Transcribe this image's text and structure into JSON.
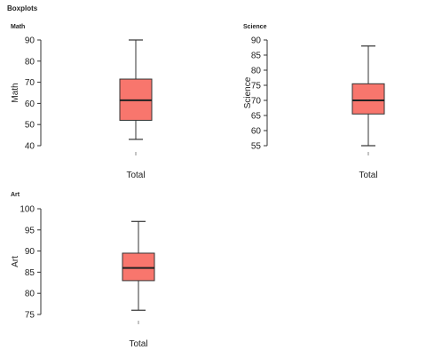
{
  "page": {
    "title": "Boxplots"
  },
  "chart_data": [
    {
      "type": "boxplot",
      "title": "Math",
      "ylabel": "Math",
      "xlabel": "Total",
      "categories": [
        ""
      ],
      "ylim": [
        40,
        90
      ],
      "yticks": [
        40,
        50,
        60,
        70,
        80,
        90
      ],
      "box": {
        "min": 43,
        "q1": 52,
        "median": 61.5,
        "q3": 71.5,
        "max": 90
      },
      "color": "#f8766d"
    },
    {
      "type": "boxplot",
      "title": "Science",
      "ylabel": "Science",
      "xlabel": "Total",
      "categories": [
        ""
      ],
      "ylim": [
        55,
        90
      ],
      "yticks": [
        55,
        60,
        65,
        70,
        75,
        80,
        85,
        90
      ],
      "box": {
        "min": 55,
        "q1": 65.5,
        "median": 70,
        "q3": 75.5,
        "max": 88
      },
      "color": "#f8766d"
    },
    {
      "type": "boxplot",
      "title": "Art",
      "ylabel": "Art",
      "xlabel": "Total",
      "categories": [
        ""
      ],
      "ylim": [
        75,
        100
      ],
      "yticks": [
        75,
        80,
        85,
        90,
        95,
        100
      ],
      "box": {
        "min": 76,
        "q1": 83,
        "median": 86,
        "q3": 89.5,
        "max": 97
      },
      "color": "#f8766d"
    }
  ]
}
